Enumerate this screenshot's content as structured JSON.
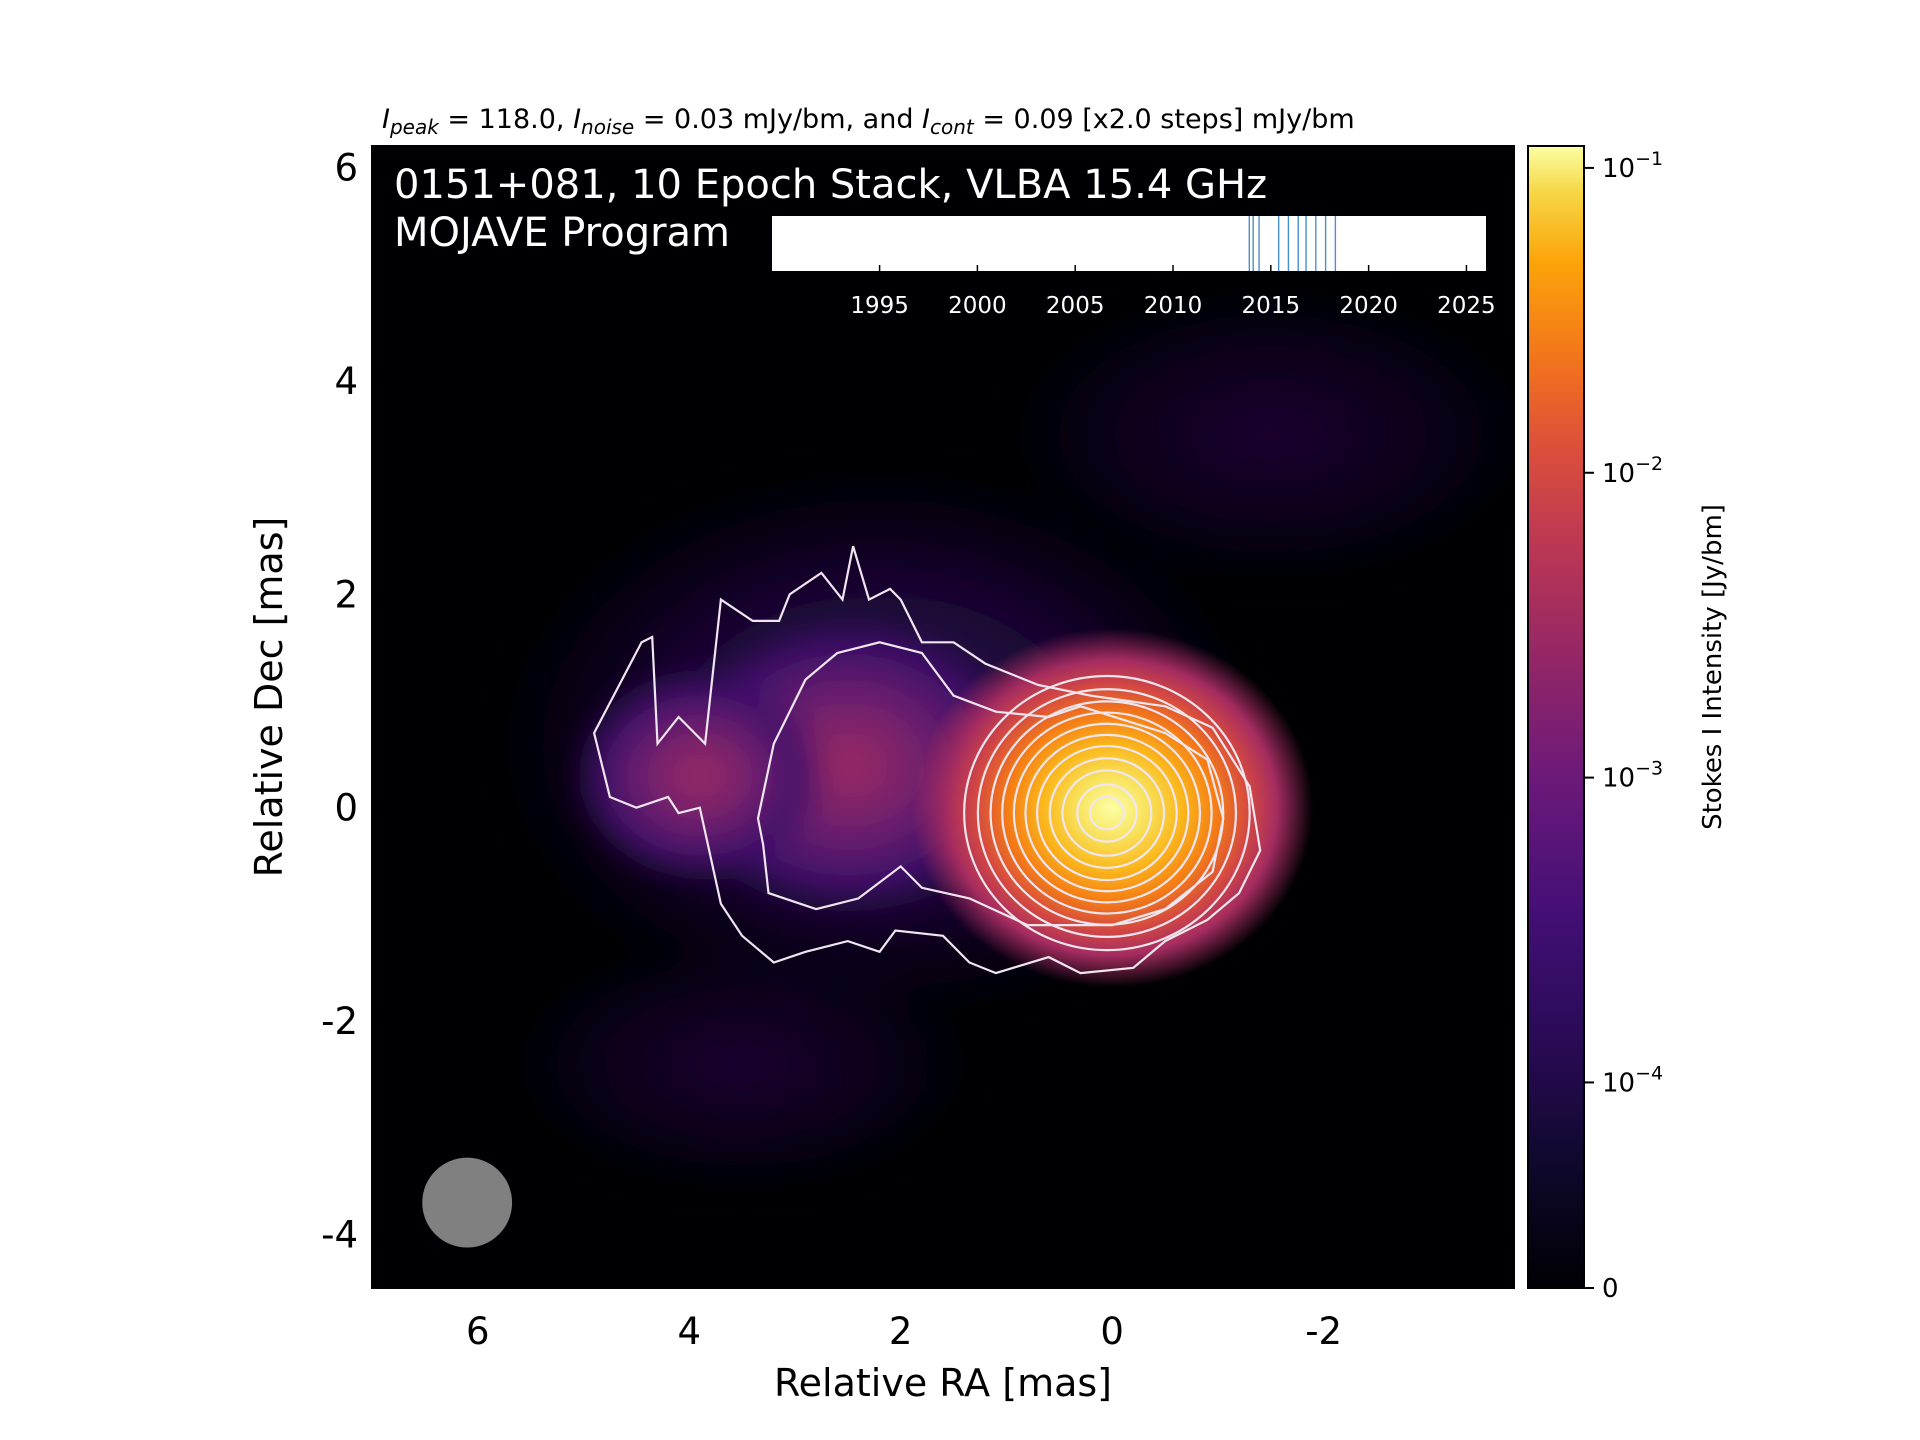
{
  "chart_data": {
    "type": "heatmap",
    "title_parts": {
      "peak_sym": "I",
      "peak_sub": "peak",
      "peak_text": " = 118.0, ",
      "noise_sym": "I",
      "noise_sub": "noise",
      "noise_text": " = 0.03 mJy/bm, and ",
      "cont_sym": "I",
      "cont_sub": "cont",
      "cont_text": " = 0.09 [x2.0 steps] mJy/bm"
    },
    "overlay_line1": "0151+081, 10 Epoch Stack, VLBA 15.4 GHz",
    "overlay_line2": "MOJAVE Program",
    "xlabel": "Relative RA [mas]",
    "ylabel": "Relative Dec [mas]",
    "xlim": [
      7.0,
      -3.8
    ],
    "ylim": [
      -4.5,
      6.2
    ],
    "xticks": [
      6,
      4,
      2,
      0,
      -2
    ],
    "xtick_labels": [
      "6",
      "4",
      "2",
      "0",
      "-2"
    ],
    "yticks": [
      6,
      4,
      2,
      0,
      -2,
      -4
    ],
    "ytick_labels": [
      "6",
      "4",
      "2",
      "0",
      "-2",
      "-4"
    ],
    "colorbar": {
      "label": "Stokes I Intensity [Jy/bm]",
      "scale": "log",
      "ticks": [
        0,
        0.0001,
        0.001,
        0.01,
        0.1
      ],
      "tick_labels": [
        {
          "base": "0",
          "exp": ""
        },
        {
          "base": "10",
          "exp": "−4"
        },
        {
          "base": "10",
          "exp": "−3"
        },
        {
          "base": "10",
          "exp": "−2"
        },
        {
          "base": "10",
          "exp": "−1"
        }
      ],
      "colormap": "inferno"
    },
    "beam": {
      "ra": 6.1,
      "dec": -3.7,
      "diameter_mas": 0.85,
      "color": "#808080"
    },
    "timeline": {
      "xlim": [
        1989.5,
        2026
      ],
      "ticks": [
        1995,
        2000,
        2005,
        2010,
        2015,
        2020,
        2025
      ],
      "tick_labels": [
        "1995",
        "2000",
        "2005",
        "2010",
        "2015",
        "2020",
        "2025"
      ],
      "epochs": [
        2013.9,
        2014.1,
        2014.4,
        2015.4,
        2015.9,
        2016.4,
        2016.8,
        2017.3,
        2017.8,
        2018.3
      ],
      "epoch_color": "#4a8fd4"
    },
    "core": {
      "ra": 0.0,
      "dec": 0.0,
      "peak_jy": 0.118
    },
    "jet_components": [
      {
        "ra": 2.5,
        "dec": 0.4,
        "flux_jy": 0.0006
      },
      {
        "ra": 3.9,
        "dec": 0.3,
        "flux_jy": 0.0002
      }
    ],
    "contour_color": "#f0e6f0"
  }
}
